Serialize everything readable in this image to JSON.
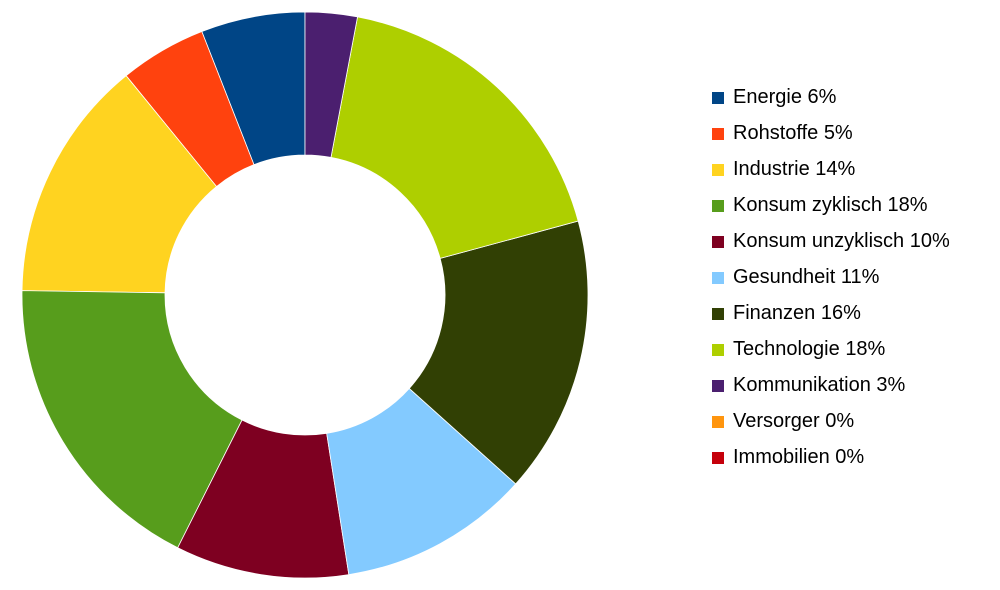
{
  "chart_data": {
    "type": "donut",
    "categories": [
      "Energie",
      "Rohstoffe",
      "Industrie",
      "Konsum zyklisch",
      "Konsum unzyklisch",
      "Gesundheit",
      "Finanzen",
      "Technologie",
      "Kommunikation",
      "Versorger",
      "Immobilien"
    ],
    "values": [
      6,
      5,
      14,
      18,
      10,
      11,
      16,
      18,
      3,
      0,
      0
    ],
    "value_labels": [
      "6%",
      "5%",
      "14%",
      "18%",
      "10%",
      "11%",
      "16%",
      "18%",
      "3%",
      "0%",
      "0%"
    ],
    "colors": [
      "#004586",
      "#ff420e",
      "#ffd320",
      "#579d1c",
      "#7e0021",
      "#83caff",
      "#314004",
      "#aecf00",
      "#4b1f6f",
      "#ff950e",
      "#c5000b"
    ],
    "legend": "right"
  }
}
